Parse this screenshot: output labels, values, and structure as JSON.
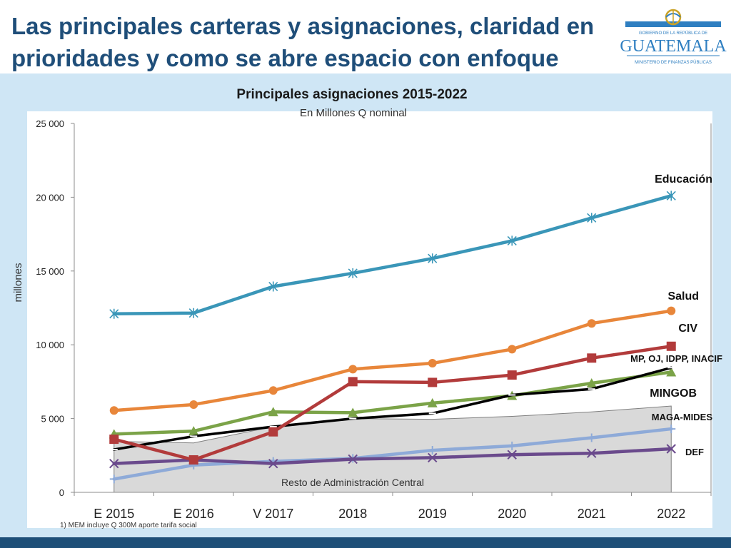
{
  "slide": {
    "title": "Las principales carteras y asignaciones, claridad en prioridades y como se abre espacio con enfoque"
  },
  "logo": {
    "line1": "GOBIERNO DE LA REPÚBLICA DE",
    "name": "GUATEMALA",
    "line2": "MINISTERIO DE FINANZAS PÚBLICAS",
    "colors": {
      "blue": "#2f7fc1",
      "gold": "#c9a227"
    }
  },
  "chart_data": {
    "type": "line",
    "title": "Principales asignaciones 2015-2022",
    "subtitle": "En Millones Q nominal",
    "ylabel": "millones",
    "xlabel": "",
    "ylim": [
      0,
      25000
    ],
    "yticks": [
      0,
      5000,
      10000,
      15000,
      20000,
      25000
    ],
    "ytick_labels": [
      "0",
      "5 000",
      "10 000",
      "15 000",
      "20 000",
      "25 000"
    ],
    "categories": [
      "E 2015",
      "E 2016",
      "V 2017",
      "2018",
      "2019",
      "2020",
      "2021",
      "2022"
    ],
    "grid": false,
    "legend": "inline labels at right",
    "area": {
      "label": "Resto de Administración Central",
      "values": [
        3450,
        3350,
        4450,
        5000,
        4950,
        5150,
        5450,
        5850
      ],
      "color": "#d9d9d9"
    },
    "series": [
      {
        "name": "Educación",
        "values": [
          12100,
          12150,
          13950,
          14850,
          15850,
          17050,
          18600,
          20100
        ],
        "color": "#3a96b8",
        "marker": "asterisk"
      },
      {
        "name": "Salud",
        "values": [
          5550,
          5950,
          6900,
          8350,
          8750,
          9700,
          11450,
          12300
        ],
        "color": "#e8863a",
        "marker": "circle"
      },
      {
        "name": "CIV",
        "values": [
          3600,
          2200,
          4100,
          7500,
          7450,
          7950,
          9100,
          9900
        ],
        "color": "#b23b3b",
        "marker": "square"
      },
      {
        "name": "MP, OJ, IDPP, INACIF",
        "values": [
          3950,
          4150,
          5450,
          5400,
          6050,
          6550,
          7400,
          8150
        ],
        "color": "#7ba348",
        "marker": "triangle"
      },
      {
        "name": "MINGOB",
        "values": [
          2900,
          3800,
          4450,
          5000,
          5350,
          6600,
          7000,
          8450
        ],
        "color": "#000000",
        "marker": "dash"
      },
      {
        "name": "MAGA-MIDES",
        "values": [
          900,
          1850,
          2100,
          2300,
          2850,
          3150,
          3700,
          4300
        ],
        "color": "#8eaad8",
        "marker": "plus"
      },
      {
        "name": "DEF",
        "values": [
          1950,
          2200,
          1950,
          2250,
          2350,
          2550,
          2650,
          2950
        ],
        "color": "#6a4a8c",
        "marker": "x"
      }
    ],
    "footnote": "1) MEM incluye Q 300M aporte tarifa social"
  }
}
